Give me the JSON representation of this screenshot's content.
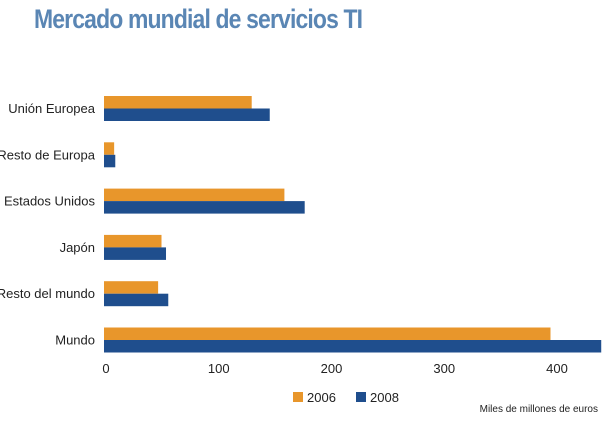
{
  "chart_data": {
    "type": "bar",
    "orientation": "horizontal",
    "title": "Mercado mundial de servicios TI",
    "xlabel": "Miles de millones de euros",
    "categories": [
      "Unión Europea",
      "Resto de Europa",
      "Estados Unidos",
      "Japón",
      "Resto del mundo",
      "Mundo"
    ],
    "series": [
      {
        "name": "2006",
        "color": "#e8962b",
        "values": [
          131,
          9,
          160,
          51,
          48,
          396
        ]
      },
      {
        "name": "2008",
        "color": "#1f4e8d",
        "values": [
          147,
          10,
          178,
          55,
          57,
          441
        ]
      }
    ],
    "xticks": [
      "0",
      "100",
      "200",
      "300",
      "400"
    ],
    "xlim": [
      0,
      441
    ],
    "grid": false,
    "legend": "bottom"
  }
}
